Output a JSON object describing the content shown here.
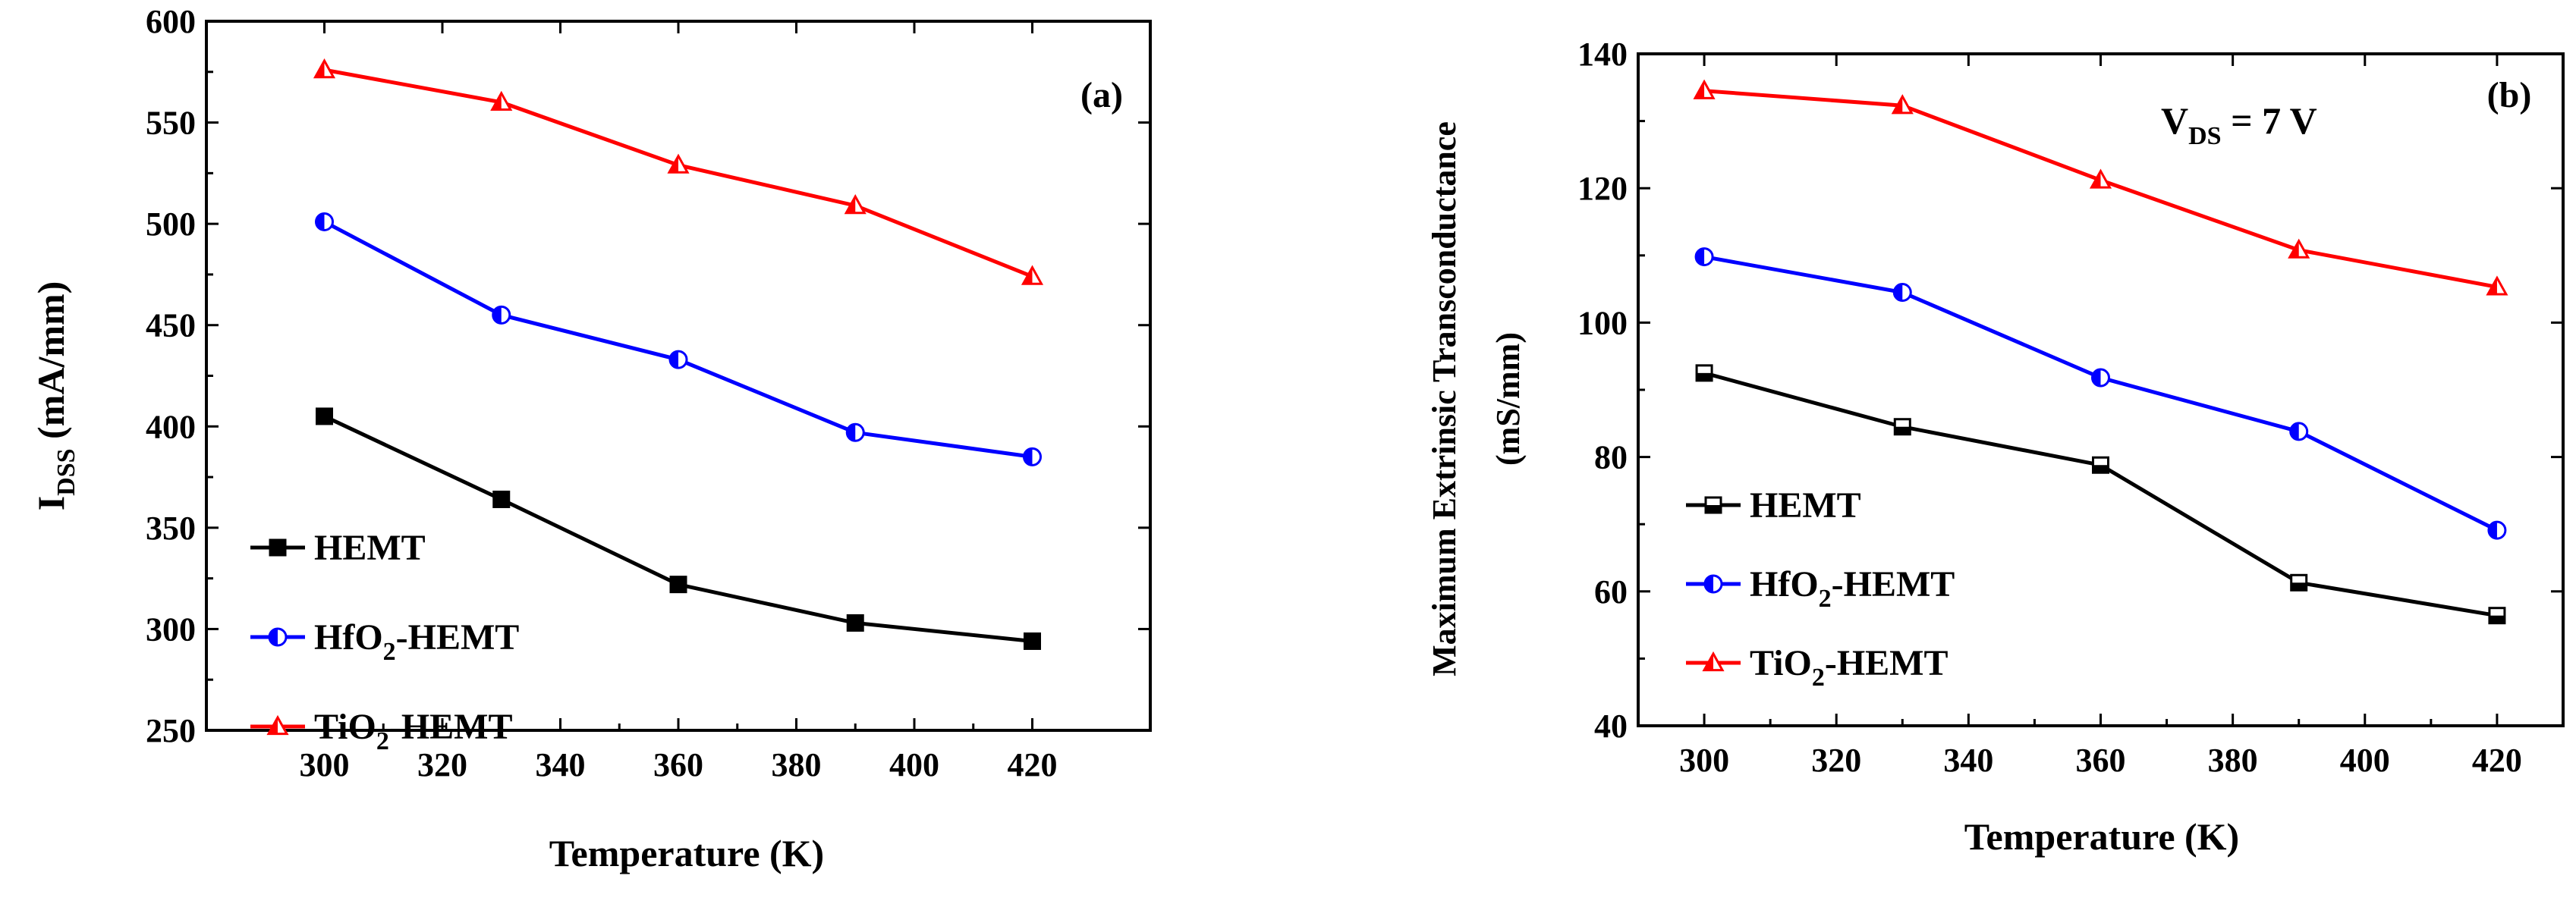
{
  "chart_data": [
    {
      "type": "line",
      "panel_label": "(a)",
      "title": "",
      "xlabel": "Temperature (K)",
      "ylabel_main": "I",
      "ylabel_sub": "DSS",
      "ylabel_unit": " (mA/mm)",
      "x": [
        300,
        330,
        360,
        390,
        420
      ],
      "xlim": [
        280,
        440
      ],
      "ylim": [
        250,
        600
      ],
      "xticks": [
        "300",
        "320",
        "340",
        "360",
        "380",
        "400",
        "420"
      ],
      "yticks": [
        "250",
        "300",
        "350",
        "400",
        "450",
        "500",
        "550",
        "600"
      ],
      "legend_position": "bottom-left",
      "series": [
        {
          "name": "HEMT",
          "name_main": "HEMT",
          "name_sub": "",
          "name_suffix": "",
          "color": "#000000",
          "marker": "square-filled",
          "values": [
            405,
            364,
            322,
            303,
            294
          ]
        },
        {
          "name": "HfO2-HEMT",
          "name_main": "HfO",
          "name_sub": "2",
          "name_suffix": "-HEMT",
          "color": "#0000ff",
          "marker": "circle-half",
          "values": [
            501,
            455,
            433,
            397,
            385
          ]
        },
        {
          "name": "TiO2-HEMT",
          "name_main": "TiO",
          "name_sub": "2",
          "name_suffix": "-HEMT",
          "color": "#ff0000",
          "marker": "triangle-half",
          "values": [
            576,
            560,
            529,
            509,
            474
          ]
        }
      ]
    },
    {
      "type": "line",
      "panel_label": "(b)",
      "title": "",
      "annotation_main": "V",
      "annotation_sub": "DS",
      "annotation_suffix": " = 7 V",
      "xlabel": "Temperature (K)",
      "ylabel_line1": "Maximum Extrinsic Transconductance",
      "ylabel_line2": "(mS/mm)",
      "x": [
        300,
        330,
        360,
        390,
        420
      ],
      "xlim": [
        290,
        430
      ],
      "ylim": [
        40,
        140
      ],
      "xticks": [
        "300",
        "320",
        "340",
        "360",
        "380",
        "400",
        "420"
      ],
      "yticks": [
        "40",
        "60",
        "80",
        "100",
        "120",
        "140"
      ],
      "legend_position": "bottom-left",
      "series": [
        {
          "name": "HEMT",
          "name_main": "HEMT",
          "name_sub": "",
          "name_suffix": "",
          "color": "#000000",
          "marker": "square-half",
          "values": [
            92.5,
            84.5,
            78.8,
            61.3,
            56.4
          ]
        },
        {
          "name": "HfO2-HEMT",
          "name_main": "HfO",
          "name_sub": "2",
          "name_suffix": "-HEMT",
          "color": "#0000ff",
          "marker": "circle-half",
          "values": [
            109.8,
            104.5,
            91.8,
            83.8,
            69.1
          ]
        },
        {
          "name": "TiO2-HEMT",
          "name_main": "TiO",
          "name_sub": "2",
          "name_suffix": "-HEMT",
          "color": "#ff0000",
          "marker": "triangle-half",
          "values": [
            134.5,
            132.3,
            121.2,
            110.8,
            105.3
          ]
        }
      ]
    }
  ]
}
